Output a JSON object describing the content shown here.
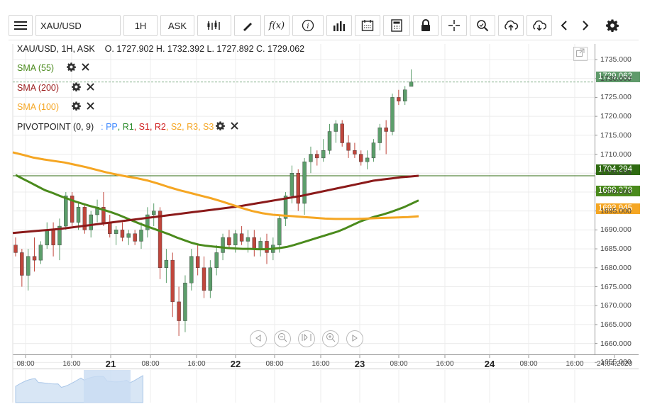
{
  "toolbar": {
    "symbol": "XAU/USD",
    "timeframe": "1H",
    "price_side": "ASK",
    "icons": [
      "menu-icon",
      "candlestick-icon",
      "draw-pencil-icon",
      "function-icon",
      "info-icon",
      "volume-bars-icon",
      "calendar-icon",
      "calculator-icon",
      "lock-icon",
      "crosshair-icon",
      "zoom-search-icon",
      "cloud-upload-icon",
      "cloud-download-icon",
      "chevron-left-icon",
      "chevron-right-icon",
      "gear-icon"
    ]
  },
  "header": {
    "ohlc": "XAU/USD, 1H, ASK    O. 1727.902 H. 1732.392 L. 1727.892 C. 1729.062"
  },
  "indicators": [
    {
      "label": "SMA (55)",
      "color": "#4a8a1c"
    },
    {
      "label": "SMA (200)",
      "color": "#9b1c1c"
    },
    {
      "label": "SMA (100)",
      "color": "#f5a623"
    }
  ],
  "pivot": {
    "label": "PIVOTPOINT (0, 9)",
    "parts": [
      {
        "text": ": PP",
        "color": "#3a86ff"
      },
      {
        "text": ", R1",
        "color": "#2a8a2a"
      },
      {
        "text": ", S1",
        "color": "#d01c1c"
      },
      {
        "text": ", R2",
        "color": "#d01c1c"
      },
      {
        "text": ", S2",
        "color": "#f5a623"
      },
      {
        "text": ", R3",
        "color": "#f5a623"
      },
      {
        "text": ", S3",
        "color": "#f5a623"
      }
    ]
  },
  "price_tags": {
    "last": "1729.062",
    "line": "1704.294",
    "sma55": "1698.378",
    "sma100": "1693.945"
  },
  "chart_data": {
    "type": "candlestick",
    "title": "XAU/USD, 1H, ASK",
    "y_ticks": [
      "1735.000",
      "1730.000",
      "1725.000",
      "1720.000",
      "1715.000",
      "1710.000",
      "1705.000",
      "1700.000",
      "1695.000",
      "1690.000",
      "1685.000",
      "1680.000",
      "1675.000",
      "1670.000",
      "1665.000",
      "1660.000",
      "1655.000"
    ],
    "ylim": [
      1653,
      1737
    ],
    "x_ticks": [
      {
        "label": "08:00",
        "day": false
      },
      {
        "label": "16:00",
        "day": false
      },
      {
        "label": "21",
        "day": true
      },
      {
        "label": "08:00",
        "day": false
      },
      {
        "label": "16:00",
        "day": false
      },
      {
        "label": "22",
        "day": true
      },
      {
        "label": "08:00",
        "day": false
      },
      {
        "label": "16:00",
        "day": false
      },
      {
        "label": "23",
        "day": true
      },
      {
        "label": "08:00",
        "day": false
      },
      {
        "label": "16:00",
        "day": false
      },
      {
        "label": "24",
        "day": true
      },
      {
        "label": "08:00",
        "day": false
      },
      {
        "label": "16:00",
        "day": false
      },
      {
        "label": "24.04.2020",
        "day": false
      }
    ],
    "candles": [
      [
        1686,
        1688,
        1683,
        1684
      ],
      [
        1684,
        1685,
        1675,
        1678
      ],
      [
        1678,
        1685,
        1674,
        1683
      ],
      [
        1683,
        1688,
        1679,
        1682
      ],
      [
        1682,
        1687,
        1681,
        1686
      ],
      [
        1686,
        1692,
        1685,
        1690
      ],
      [
        1690,
        1692,
        1683,
        1686
      ],
      [
        1686,
        1693,
        1682,
        1691
      ],
      [
        1691,
        1700,
        1690,
        1699
      ],
      [
        1699,
        1700,
        1691,
        1692
      ],
      [
        1692,
        1697,
        1690,
        1696
      ],
      [
        1696,
        1697,
        1689,
        1690
      ],
      [
        1690,
        1695,
        1688,
        1694
      ],
      [
        1694,
        1698,
        1692,
        1696
      ],
      [
        1696,
        1700,
        1691,
        1692
      ],
      [
        1692,
        1694,
        1688,
        1689
      ],
      [
        1689,
        1691,
        1686,
        1690
      ],
      [
        1690,
        1692,
        1687,
        1688
      ],
      [
        1688,
        1690,
        1686,
        1689
      ],
      [
        1689,
        1690,
        1686,
        1687
      ],
      [
        1687,
        1692,
        1685,
        1690
      ],
      [
        1690,
        1696,
        1688,
        1694
      ],
      [
        1694,
        1697,
        1691,
        1695
      ],
      [
        1695,
        1696,
        1677,
        1680
      ],
      [
        1680,
        1685,
        1676,
        1682
      ],
      [
        1682,
        1684,
        1667,
        1671
      ],
      [
        1671,
        1675,
        1662,
        1666
      ],
      [
        1666,
        1678,
        1663,
        1676
      ],
      [
        1676,
        1685,
        1674,
        1683
      ],
      [
        1683,
        1686,
        1678,
        1680
      ],
      [
        1680,
        1683,
        1672,
        1674
      ],
      [
        1674,
        1682,
        1672,
        1680
      ],
      [
        1680,
        1686,
        1678,
        1684
      ],
      [
        1684,
        1689,
        1682,
        1688
      ],
      [
        1688,
        1690,
        1685,
        1686
      ],
      [
        1686,
        1690,
        1684,
        1689
      ],
      [
        1689,
        1691,
        1686,
        1687
      ],
      [
        1687,
        1690,
        1684,
        1688
      ],
      [
        1688,
        1690,
        1683,
        1685
      ],
      [
        1685,
        1688,
        1683,
        1687
      ],
      [
        1687,
        1689,
        1681,
        1684
      ],
      [
        1684,
        1688,
        1682,
        1686
      ],
      [
        1686,
        1694,
        1684,
        1693
      ],
      [
        1693,
        1700,
        1691,
        1699
      ],
      [
        1699,
        1707,
        1697,
        1705
      ],
      [
        1705,
        1706,
        1695,
        1697
      ],
      [
        1697,
        1709,
        1694,
        1708
      ],
      [
        1708,
        1712,
        1705,
        1710
      ],
      [
        1710,
        1711,
        1707,
        1709
      ],
      [
        1709,
        1714,
        1708,
        1711
      ],
      [
        1711,
        1718,
        1710,
        1716
      ],
      [
        1716,
        1719,
        1713,
        1718
      ],
      [
        1718,
        1719,
        1712,
        1713
      ],
      [
        1713,
        1715,
        1709,
        1711
      ],
      [
        1711,
        1713,
        1709,
        1710
      ],
      [
        1710,
        1711,
        1707,
        1708
      ],
      [
        1708,
        1711,
        1706,
        1709
      ],
      [
        1709,
        1714,
        1708,
        1713
      ],
      [
        1713,
        1718,
        1711,
        1717
      ],
      [
        1717,
        1719,
        1710,
        1716
      ],
      [
        1716,
        1726,
        1715,
        1725
      ],
      [
        1725,
        1727,
        1723,
        1724
      ],
      [
        1724,
        1728,
        1723,
        1727
      ],
      [
        1727.9,
        1732.4,
        1727.9,
        1729.1
      ]
    ],
    "series": [
      {
        "name": "SMA (55)",
        "color": "#4a8a1c",
        "values": [
          1704.5,
          1703.5,
          1702.5,
          1701.5,
          1700.5,
          1699.8,
          1699,
          1698.3,
          1697.6,
          1697,
          1696.4,
          1695.9,
          1695.3,
          1694.7,
          1694,
          1693.2,
          1692.4,
          1691.6,
          1690.9,
          1690.2,
          1689.5,
          1688.8,
          1688,
          1687.3,
          1686.6,
          1686.1,
          1685.8,
          1685.6,
          1685.4,
          1685.2,
          1685.1,
          1685,
          1685,
          1684.9,
          1684.9,
          1685,
          1685.2,
          1685.5,
          1686,
          1686.6,
          1687.2,
          1687.8,
          1688.4,
          1689,
          1689.6,
          1690.4,
          1691.3,
          1692.2,
          1692.9,
          1693.5,
          1694,
          1694.6,
          1695.3,
          1696,
          1696.9,
          1697.8
        ]
      },
      {
        "name": "SMA (200)",
        "color": "#8b1a1a",
        "values": [
          1689.2,
          1689.4,
          1689.6,
          1689.8,
          1690,
          1690.2,
          1690.5,
          1690.8,
          1691.1,
          1691.4,
          1691.7,
          1692,
          1692.3,
          1692.6,
          1692.9,
          1693.2,
          1693.5,
          1693.8,
          1694.1,
          1694.4,
          1694.7,
          1695,
          1695.3,
          1695.6,
          1695.9,
          1696.2,
          1696.6,
          1697,
          1697.4,
          1697.8,
          1698.2,
          1698.6,
          1699,
          1699.5,
          1700,
          1700.5,
          1701,
          1701.5,
          1702,
          1702.5,
          1703,
          1703.3,
          1703.6,
          1703.9,
          1704.1,
          1704.3
        ]
      },
      {
        "name": "SMA (100)",
        "color": "#f5a623",
        "values": [
          1710.5,
          1709.8,
          1709.1,
          1708.6,
          1708.2,
          1707.8,
          1707.2,
          1706.6,
          1705.9,
          1705.2,
          1704.6,
          1704.1,
          1703.6,
          1703,
          1702.2,
          1701.3,
          1700.5,
          1699.8,
          1699.1,
          1698.4,
          1697.6,
          1696.7,
          1695.8,
          1695,
          1694.4,
          1694,
          1693.8,
          1693.6,
          1693.4,
          1693.2,
          1693,
          1692.9,
          1692.9,
          1692.9,
          1693,
          1693.1,
          1693.2,
          1693.3,
          1693.4,
          1693.6
        ]
      }
    ],
    "hlines": [
      {
        "value": 1704.294,
        "color": "#2f6b12"
      }
    ],
    "last_price": 1729.062,
    "grid": true
  }
}
